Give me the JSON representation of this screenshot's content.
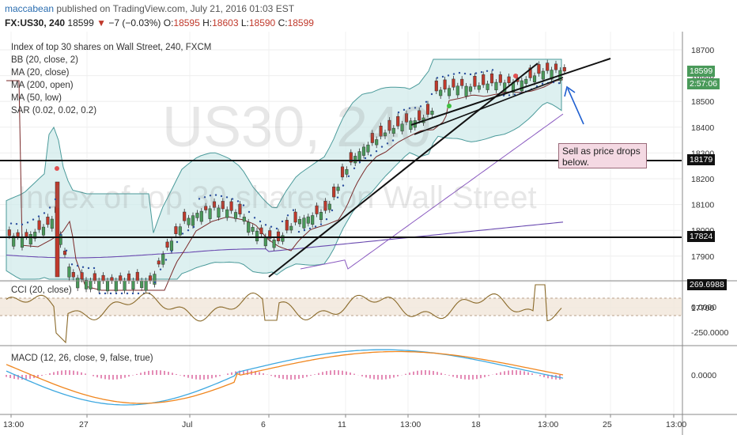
{
  "header": {
    "author": "maccabean",
    "published": "published on TradingView.com, July 21, 2016 01:03 EST",
    "symbol": "FX:US30, 240",
    "last": "18599",
    "change_arrow": "▼",
    "change": "−7 (−0.03%)",
    "open_label": "O:",
    "open": "18595",
    "high_label": "H:",
    "high": "18603",
    "low_label": "L:",
    "low": "18590",
    "close_label": "C:",
    "close": "18599"
  },
  "indicators": {
    "title": "Index of top 30 shares on Wall Street, 240, FXCM",
    "bb": "BB (20, close, 2)",
    "ma20": "MA (20, close)",
    "ma200": "MA (200, open)",
    "ma50": "MA (50, low)",
    "sar": "SAR (0.02, 0.02, 0.2)",
    "cci": "CCI (20, close)",
    "macd": "MACD (12, 26, close, 9, false, true)"
  },
  "watermark": {
    "big": "US30, 240",
    "sub": "Index of top 30 shares on Wall Street"
  },
  "note": {
    "text": "Sell as price drops below."
  },
  "price_axis": {
    "ticks": [
      "18700",
      "18600",
      "18500",
      "18400",
      "18300",
      "18200",
      "18100",
      "18000",
      "17900",
      "17800",
      "17700"
    ],
    "badge_price": "18599",
    "badge_timer": "2:57:06",
    "badge_level_1": "18179",
    "badge_level_2": "17824"
  },
  "cci_axis": {
    "ticks": [
      "0.0000",
      "-250.0000"
    ],
    "badge": "269.6988"
  },
  "macd_axis": {
    "ticks": [
      "0.0000"
    ]
  },
  "time_axis": {
    "ticks": [
      "13:00",
      "27",
      "Jul",
      "6",
      "11",
      "13:00",
      "18",
      "13:00",
      "25",
      "13:00"
    ]
  },
  "colors": {
    "bull": "#4a9a5a",
    "bear": "#c0392b",
    "bb_fill": "#cfeaea",
    "sar": "#2b4f9e",
    "ma200": "#6a4ab0",
    "cci": "#8a6a2a",
    "macd": "#3ea8e0",
    "signal": "#f0861e",
    "hist": "#d23f86",
    "note_bg": "#f4d9e3"
  }
}
